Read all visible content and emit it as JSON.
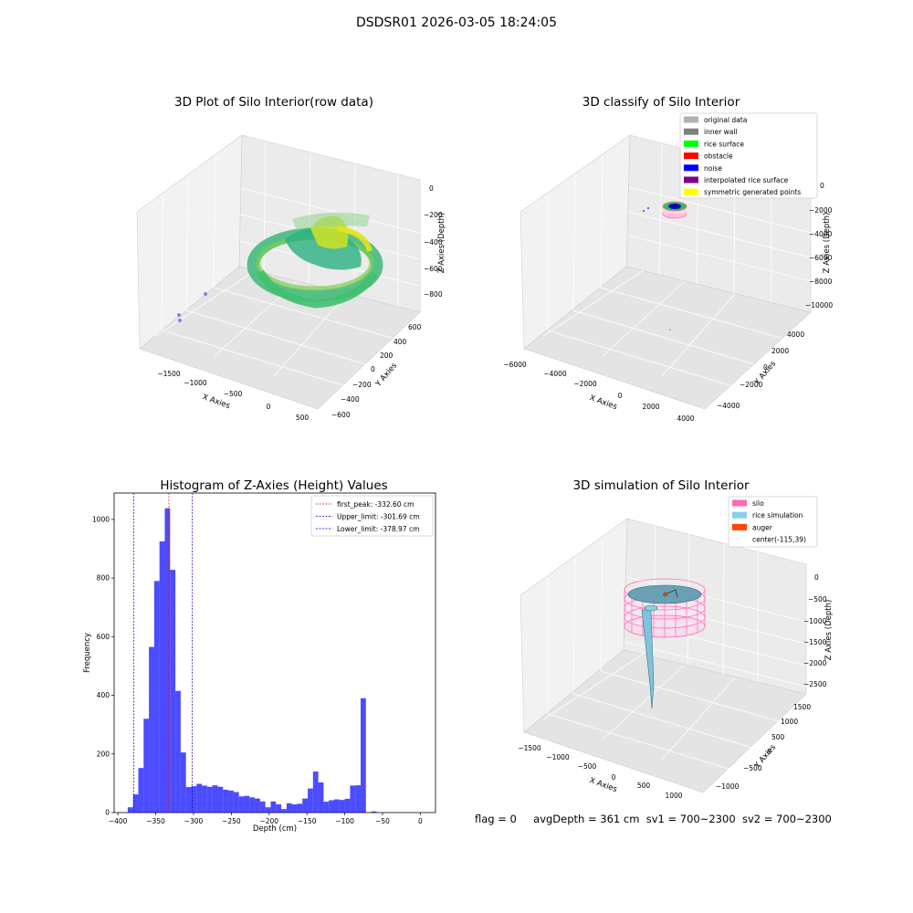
{
  "suptitle": "DSDSR01 2026-03-05 18:24:05",
  "panels": {
    "raw": {
      "title": "3D Plot of Silo Interior(row data)",
      "xlabel": "X Axies",
      "ylabel": "Y Axies",
      "zlabel": "Z Axies (Depth)",
      "xticks": [
        "−1500",
        "−1000",
        "−500",
        "0",
        "500"
      ],
      "yticks": [
        "−600",
        "−400",
        "−200",
        "0",
        "200",
        "400",
        "600"
      ],
      "zticks": [
        "0",
        "−200",
        "−400",
        "−600",
        "−800"
      ]
    },
    "classify": {
      "title": "3D classify of Silo Interior",
      "xlabel": "X Axies",
      "ylabel": "Y Axies",
      "zlabel": "Z Axies (Depth)",
      "xticks": [
        "−6000",
        "−4000",
        "−2000",
        "0",
        "2000",
        "4000"
      ],
      "yticks": [
        "−4000",
        "−2000",
        "0",
        "2000",
        "4000"
      ],
      "zticks": [
        "0",
        "−2000",
        "−4000",
        "−6000",
        "−8000",
        "−10000"
      ],
      "legend": [
        {
          "label": "original data",
          "color": "#b0b0b0"
        },
        {
          "label": "inner wall",
          "color": "#808080"
        },
        {
          "label": "rice surface",
          "color": "#00ff00"
        },
        {
          "label": "obstacle",
          "color": "#ff0000"
        },
        {
          "label": "noise",
          "color": "#0000ff"
        },
        {
          "label": "interpolated rice surface",
          "color": "#800080"
        },
        {
          "label": "symmetric generated points",
          "color": "#ffff00"
        }
      ]
    },
    "simulation": {
      "title": "3D simulation of Silo Interior",
      "xlabel": "X Axies",
      "ylabel": "Y Axies",
      "zlabel": "Z Axies (Depth)",
      "xticks": [
        "−1500",
        "−1000",
        "−500",
        "0",
        "500",
        "1000"
      ],
      "yticks": [
        "−1000",
        "−500",
        "0",
        "500",
        "1000",
        "1500"
      ],
      "zticks": [
        "0",
        "−500",
        "−1000",
        "−1500",
        "−2000",
        "−2500"
      ],
      "legend": [
        {
          "label": "silo",
          "color": "#ff69b4"
        },
        {
          "label": "rice simulation",
          "color": "#87ceeb"
        },
        {
          "label": "auger",
          "color": "#ff4500"
        },
        {
          "label": "center(-115,39)",
          "color": ""
        }
      ]
    }
  },
  "chart_data": {
    "type": "bar",
    "title": "Histogram of Z-Axies (Height) Values",
    "xlabel": "Depth (cm)",
    "ylabel": "Frequency",
    "xlim": [
      -405,
      20
    ],
    "ylim": [
      0,
      1090
    ],
    "xticks": [
      -400,
      -350,
      -300,
      -250,
      -200,
      -150,
      -100,
      -50,
      0
    ],
    "yticks": [
      0,
      200,
      400,
      600,
      800,
      1000
    ],
    "bin_start": -387,
    "bin_width": 7,
    "bar_color": "#0000ff",
    "values": [
      18,
      62,
      152,
      320,
      565,
      790,
      925,
      1038,
      828,
      415,
      205,
      87,
      90,
      98,
      92,
      88,
      93,
      88,
      78,
      75,
      70,
      55,
      57,
      52,
      48,
      38,
      18,
      38,
      28,
      12,
      32,
      28,
      30,
      48,
      82,
      140,
      103,
      37,
      42,
      45,
      43,
      47,
      92,
      93,
      390,
      0,
      4
    ],
    "lines": [
      {
        "label": "first_peak: -332.60 cm",
        "x": -332.6,
        "color": "#ff0000"
      },
      {
        "label": "Upper_limit: -301.69 cm",
        "x": -301.69,
        "color": "#0000cc"
      },
      {
        "label": "Lower_limit: -378.97 cm",
        "x": -378.97,
        "color": "#0000cc"
      }
    ]
  },
  "footer": {
    "flag": "flag = 0",
    "avg": "avgDepth = 361 cm",
    "sv1": "sv1 = 700~2300",
    "sv2": "sv2 = 700~2300"
  }
}
